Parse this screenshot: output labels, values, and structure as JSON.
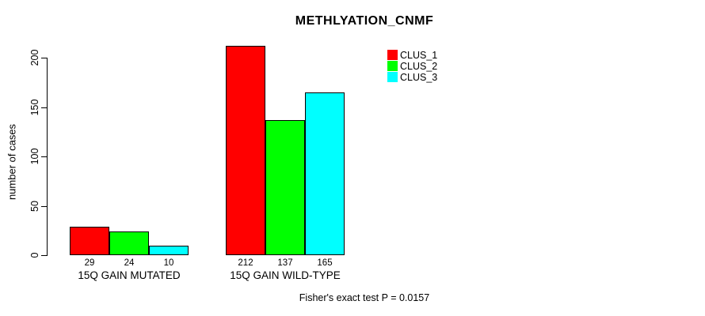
{
  "chart_data": {
    "type": "bar",
    "title": "METHLYATION_CNMF",
    "ylabel": "number of cases",
    "xlabel": "",
    "categories": [
      "15Q GAIN MUTATED",
      "15Q GAIN WILD-TYPE"
    ],
    "series": [
      {
        "name": "CLUS_1",
        "color": "#ff0000",
        "values": [
          29,
          212
        ]
      },
      {
        "name": "CLUS_2",
        "color": "#00ff00",
        "values": [
          24,
          137
        ]
      },
      {
        "name": "CLUS_3",
        "color": "#00ffff",
        "values": [
          10,
          165
        ]
      }
    ],
    "yticks": [
      0,
      50,
      100,
      150,
      200
    ],
    "ylim": [
      0,
      220
    ],
    "grid": false,
    "value_labels_shown": true,
    "bar_border_color": "#000000",
    "background_color": "#ffffff",
    "legend_position": "top-right",
    "annotation": "Fisher's exact test P = 0.0157"
  }
}
